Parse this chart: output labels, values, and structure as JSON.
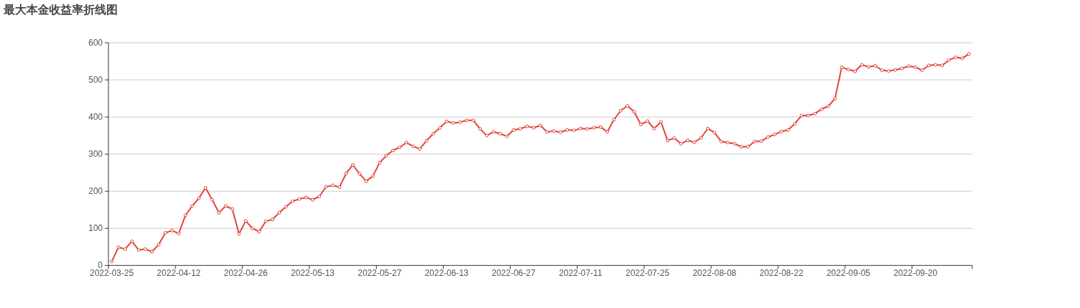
{
  "chart_data": {
    "type": "line",
    "title": "最大本金收益率折线图",
    "categories": [
      "2022-03-25",
      null,
      null,
      null,
      null,
      null,
      null,
      null,
      null,
      null,
      "2022-04-12",
      null,
      null,
      null,
      null,
      null,
      null,
      null,
      null,
      null,
      "2022-04-26",
      null,
      null,
      null,
      null,
      null,
      null,
      null,
      null,
      null,
      "2022-05-13",
      null,
      null,
      null,
      null,
      null,
      null,
      null,
      null,
      null,
      "2022-05-27",
      null,
      null,
      null,
      null,
      null,
      null,
      null,
      null,
      null,
      "2022-06-13",
      null,
      null,
      null,
      null,
      null,
      null,
      null,
      null,
      null,
      "2022-06-27",
      null,
      null,
      null,
      null,
      null,
      null,
      null,
      null,
      null,
      "2022-07-11",
      null,
      null,
      null,
      null,
      null,
      null,
      null,
      null,
      null,
      "2022-07-25",
      null,
      null,
      null,
      null,
      null,
      null,
      null,
      null,
      null,
      "2022-08-08",
      null,
      null,
      null,
      null,
      null,
      null,
      null,
      null,
      null,
      "2022-08-22",
      null,
      null,
      null,
      null,
      null,
      null,
      null,
      null,
      null,
      "2022-09-05",
      null,
      null,
      null,
      null,
      null,
      null,
      null,
      null,
      null,
      "2022-09-20",
      null,
      null,
      null,
      null,
      null,
      null,
      null,
      null
    ],
    "series": [
      {
        "color": "#e0443a",
        "values": [
          11,
          49,
          44,
          65,
          42,
          44,
          37,
          56,
          88,
          94,
          86,
          135,
          160,
          181,
          209,
          177,
          142,
          160,
          152,
          85,
          120,
          100,
          91,
          119,
          124,
          142,
          158,
          173,
          179,
          183,
          177,
          186,
          212,
          216,
          211,
          248,
          271,
          247,
          227,
          241,
          277,
          296,
          310,
          318,
          331,
          321,
          314,
          336,
          355,
          371,
          388,
          384,
          386,
          391,
          391,
          368,
          350,
          360,
          355,
          348,
          365,
          368,
          375,
          371,
          377,
          360,
          362,
          359,
          365,
          364,
          369,
          368,
          371,
          373,
          360,
          393,
          417,
          430,
          414,
          380,
          389,
          369,
          387,
          337,
          343,
          328,
          337,
          332,
          344,
          369,
          358,
          334,
          331,
          328,
          320,
          320,
          334,
          335,
          346,
          353,
          361,
          365,
          382,
          404,
          404,
          409,
          421,
          429,
          450,
          534,
          528,
          523,
          541,
          535,
          538,
          526,
          524,
          527,
          531,
          537,
          534,
          526,
          539,
          541,
          539,
          553,
          561,
          558,
          570
        ]
      }
    ],
    "ylim": [
      0,
      600
    ],
    "yticks": [
      0,
      100,
      200,
      300,
      400,
      500,
      600
    ],
    "grid": "y",
    "marker": "circle",
    "line_style": "solid"
  }
}
